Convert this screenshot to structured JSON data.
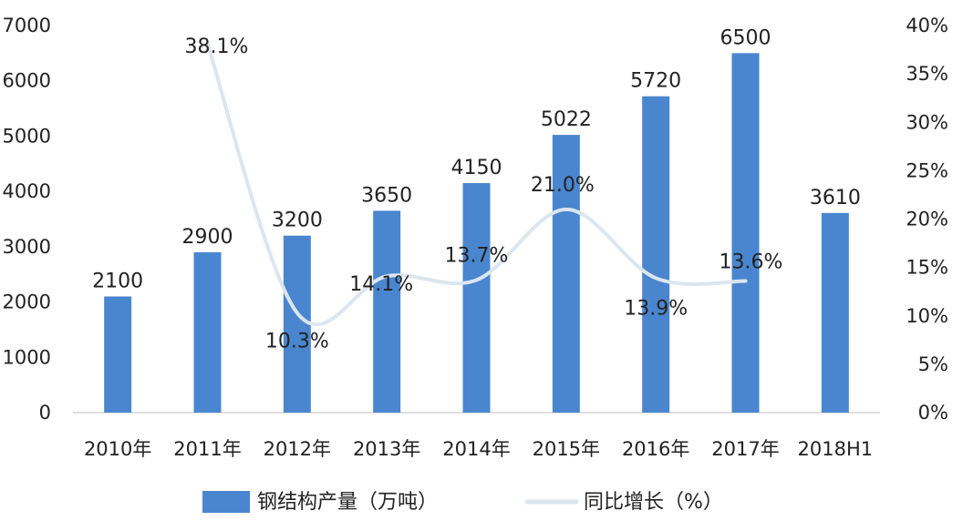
{
  "chart_data": {
    "type": "bar",
    "categories": [
      "2010年",
      "2011年",
      "2012年",
      "2013年",
      "2014年",
      "2015年",
      "2016年",
      "2017年",
      "2018H1"
    ],
    "series": [
      {
        "name": "钢结构产量（万吨）",
        "type": "bar",
        "axis": "left",
        "values": [
          2100,
          2900,
          3200,
          3650,
          4150,
          5022,
          5720,
          6500,
          3610
        ],
        "labels": [
          "2100",
          "2900",
          "3200",
          "3650",
          "4150",
          "5022",
          "5720",
          "6500",
          "3610"
        ],
        "color": "#4a86cf"
      },
      {
        "name": "同比增长（%）",
        "type": "line",
        "axis": "right",
        "values": [
          null,
          38.1,
          10.3,
          14.1,
          13.7,
          21.0,
          13.9,
          13.6,
          null
        ],
        "labels": [
          "",
          "38.1%",
          "10.3%",
          "14.1%",
          "13.7%",
          "21.0%",
          "13.9%",
          "13.6%",
          ""
        ],
        "color": "#dbe6ef"
      }
    ],
    "ylim": [
      0,
      7000
    ],
    "y_ticks": [
      "0",
      "1000",
      "2000",
      "3000",
      "4000",
      "5000",
      "6000",
      "7000"
    ],
    "y2lim": [
      0,
      40
    ],
    "y2_ticks": [
      "0%",
      "5%",
      "10%",
      "15%",
      "20%",
      "25%",
      "30%",
      "35%",
      "40%"
    ],
    "legend": "bottom",
    "grid": false
  }
}
